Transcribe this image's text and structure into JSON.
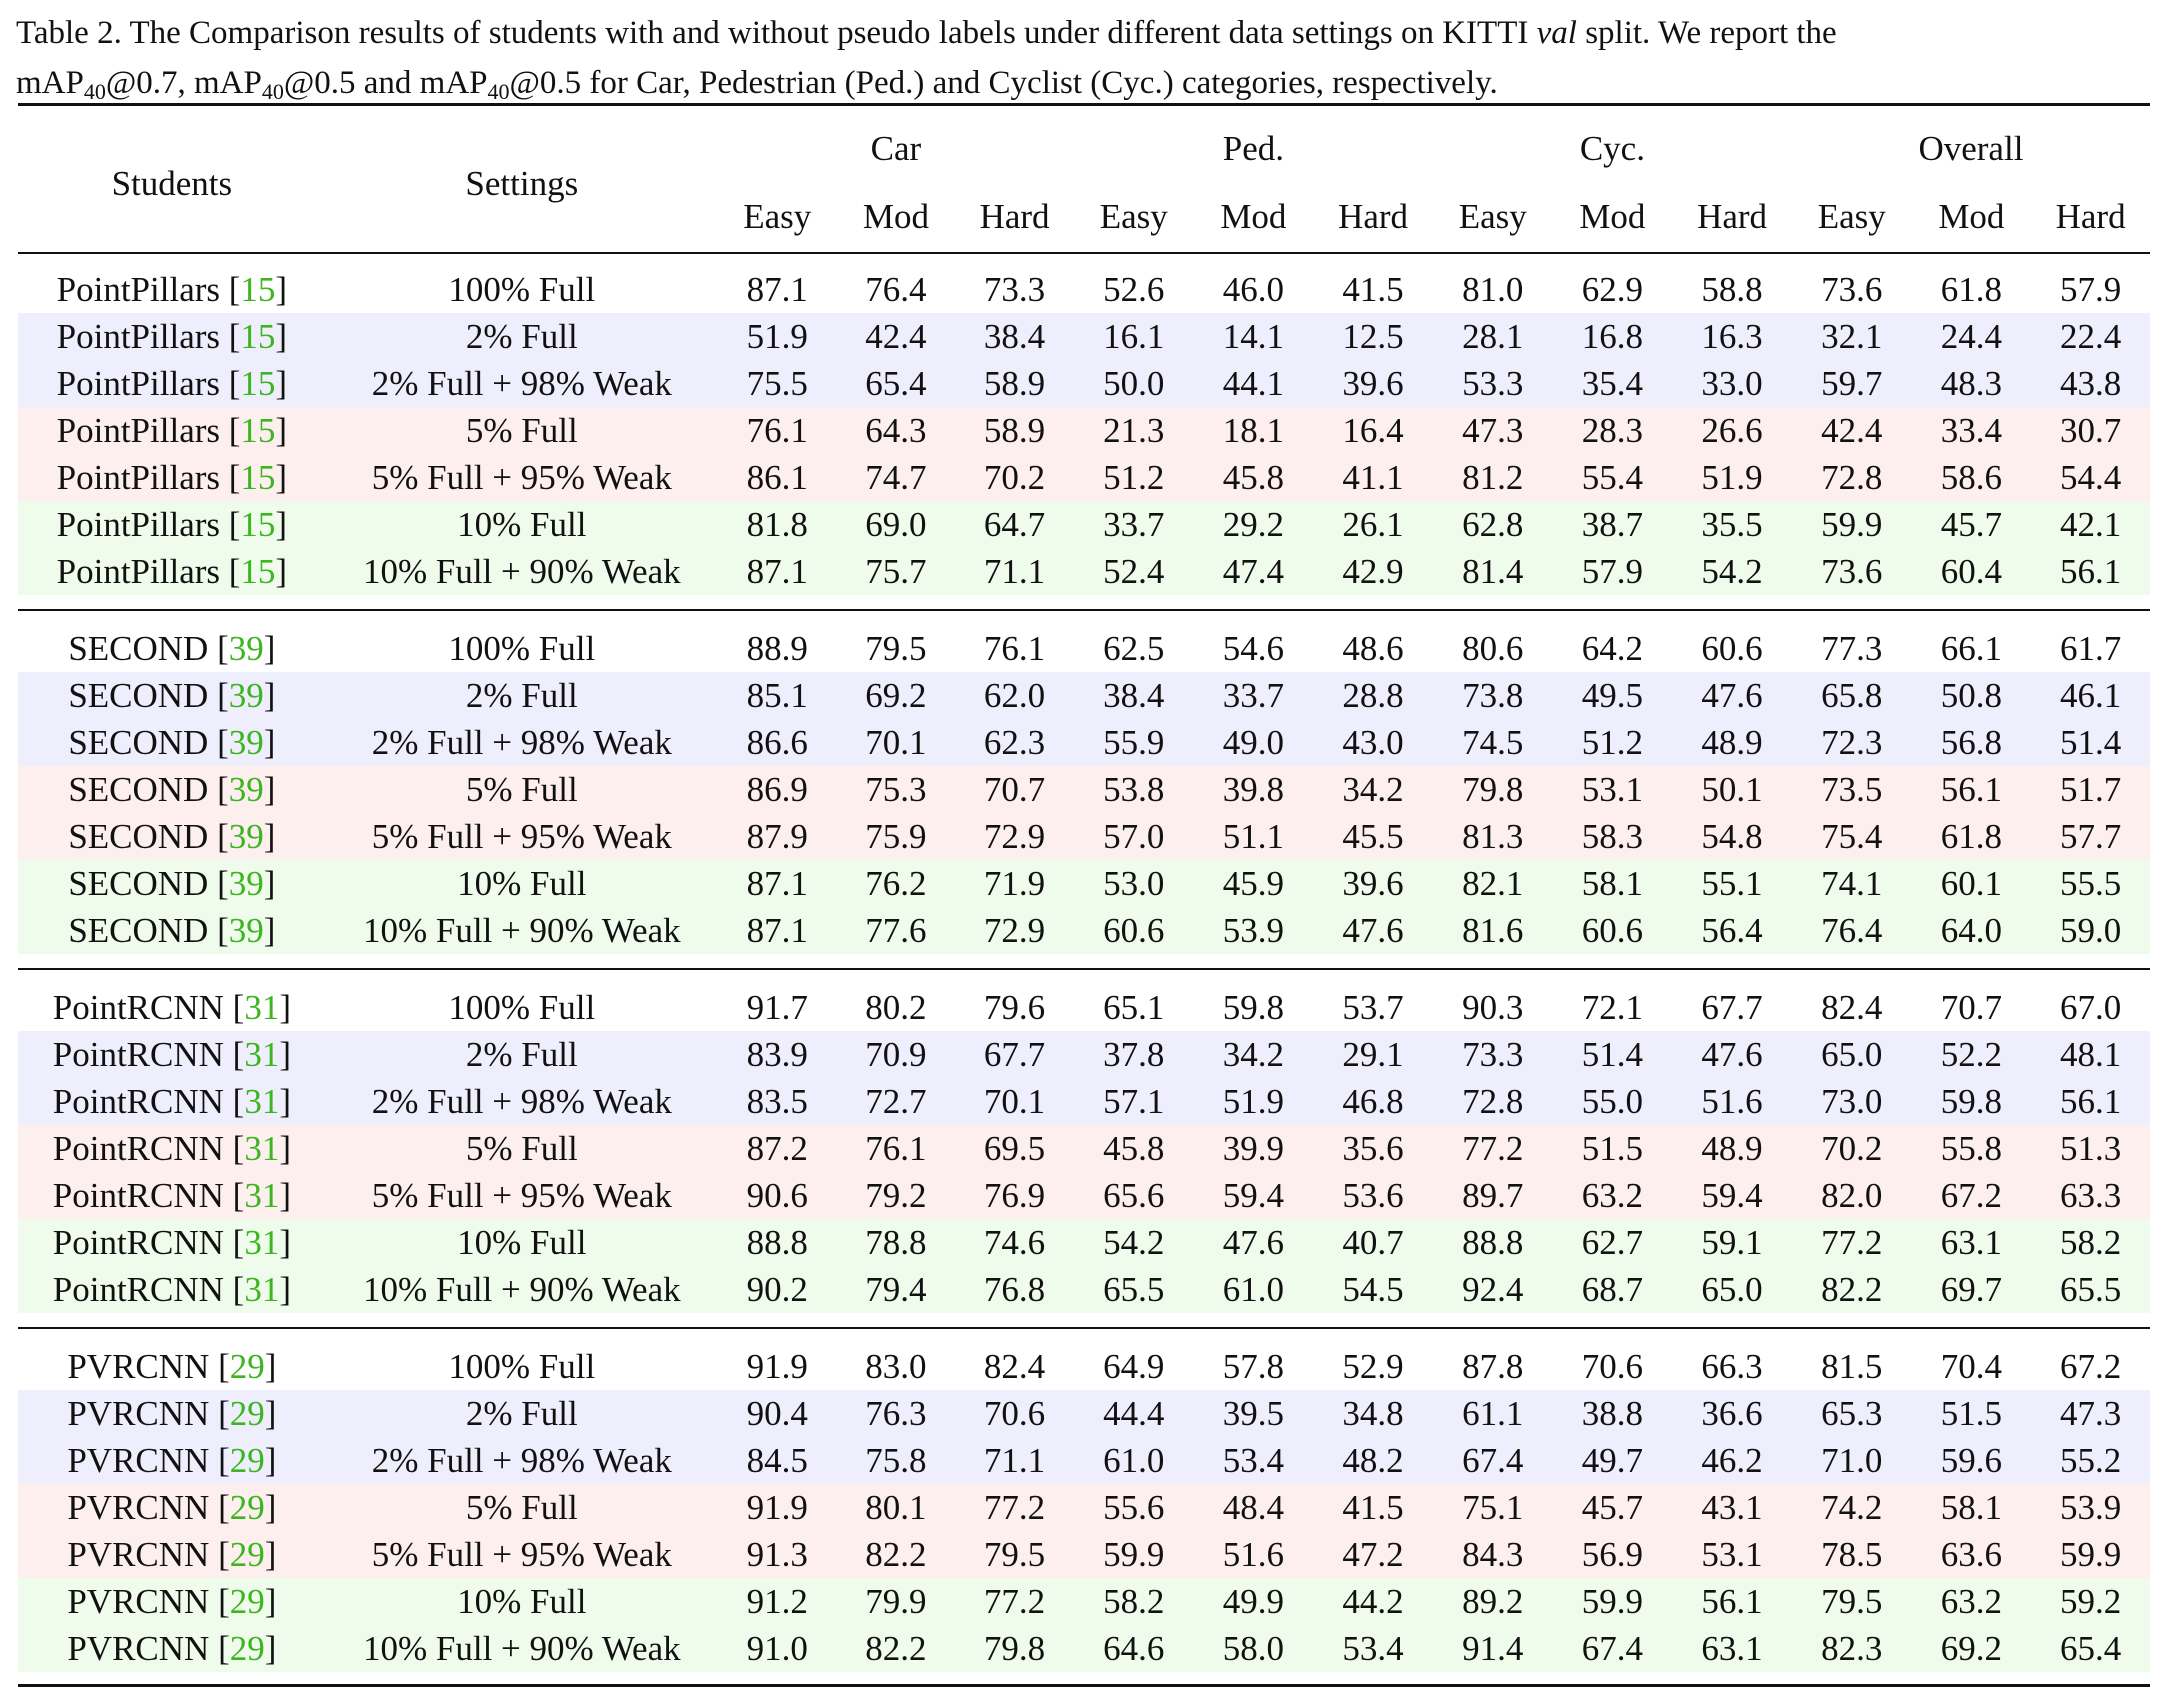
{
  "caption": {
    "part1": "Table 2. The Comparison results of students with and without pseudo labels under different data settings on KITTI ",
    "val": "val",
    "part2": " split. We report the",
    "map": "mAP",
    "sub": "40",
    "m1": "@0.7, ",
    "m2": "@0.5 and ",
    "m3": "@0.5 for Car, Pedestrian (Ped.) and Cyclist (Cyc.) categories, respectively."
  },
  "headers": {
    "students": "Students",
    "settings": "Settings",
    "groups": [
      "Car",
      "Ped.",
      "Cyc.",
      "Overall"
    ],
    "sub": [
      "Easy",
      "Mod",
      "Hard",
      "Easy",
      "Mod",
      "Hard",
      "Easy",
      "Mod",
      "Hard",
      "Easy",
      "Mod",
      "Hard"
    ]
  },
  "colors": {
    "ref_link": "#3cb521",
    "row_blue": "#eeeefc",
    "row_red": "#fcefee",
    "row_green": "#effcec"
  },
  "groups": [
    {
      "student": "PointPillars",
      "ref": "15",
      "rows": [
        {
          "setting": "100% Full",
          "values": [
            "87.1",
            "76.4",
            "73.3",
            "52.6",
            "46.0",
            "41.5",
            "81.0",
            "62.9",
            "58.8",
            "73.6",
            "61.8",
            "57.9"
          ]
        },
        {
          "setting": "2% Full",
          "values": [
            "51.9",
            "42.4",
            "38.4",
            "16.1",
            "14.1",
            "12.5",
            "28.1",
            "16.8",
            "16.3",
            "32.1",
            "24.4",
            "22.4"
          ]
        },
        {
          "setting": "2% Full + 98% Weak",
          "values": [
            "75.5",
            "65.4",
            "58.9",
            "50.0",
            "44.1",
            "39.6",
            "53.3",
            "35.4",
            "33.0",
            "59.7",
            "48.3",
            "43.8"
          ]
        },
        {
          "setting": "5% Full",
          "values": [
            "76.1",
            "64.3",
            "58.9",
            "21.3",
            "18.1",
            "16.4",
            "47.3",
            "28.3",
            "26.6",
            "42.4",
            "33.4",
            "30.7"
          ]
        },
        {
          "setting": "5% Full + 95% Weak",
          "values": [
            "86.1",
            "74.7",
            "70.2",
            "51.2",
            "45.8",
            "41.1",
            "81.2",
            "55.4",
            "51.9",
            "72.8",
            "58.6",
            "54.4"
          ]
        },
        {
          "setting": "10% Full",
          "values": [
            "81.8",
            "69.0",
            "64.7",
            "33.7",
            "29.2",
            "26.1",
            "62.8",
            "38.7",
            "35.5",
            "59.9",
            "45.7",
            "42.1"
          ]
        },
        {
          "setting": "10% Full + 90% Weak",
          "values": [
            "87.1",
            "75.7",
            "71.1",
            "52.4",
            "47.4",
            "42.9",
            "81.4",
            "57.9",
            "54.2",
            "73.6",
            "60.4",
            "56.1"
          ]
        }
      ]
    },
    {
      "student": "SECOND",
      "ref": "39",
      "rows": [
        {
          "setting": "100% Full",
          "values": [
            "88.9",
            "79.5",
            "76.1",
            "62.5",
            "54.6",
            "48.6",
            "80.6",
            "64.2",
            "60.6",
            "77.3",
            "66.1",
            "61.7"
          ]
        },
        {
          "setting": "2% Full",
          "values": [
            "85.1",
            "69.2",
            "62.0",
            "38.4",
            "33.7",
            "28.8",
            "73.8",
            "49.5",
            "47.6",
            "65.8",
            "50.8",
            "46.1"
          ]
        },
        {
          "setting": "2% Full + 98% Weak",
          "values": [
            "86.6",
            "70.1",
            "62.3",
            "55.9",
            "49.0",
            "43.0",
            "74.5",
            "51.2",
            "48.9",
            "72.3",
            "56.8",
            "51.4"
          ]
        },
        {
          "setting": "5% Full",
          "values": [
            "86.9",
            "75.3",
            "70.7",
            "53.8",
            "39.8",
            "34.2",
            "79.8",
            "53.1",
            "50.1",
            "73.5",
            "56.1",
            "51.7"
          ]
        },
        {
          "setting": "5% Full + 95% Weak",
          "values": [
            "87.9",
            "75.9",
            "72.9",
            "57.0",
            "51.1",
            "45.5",
            "81.3",
            "58.3",
            "54.8",
            "75.4",
            "61.8",
            "57.7"
          ]
        },
        {
          "setting": "10% Full",
          "values": [
            "87.1",
            "76.2",
            "71.9",
            "53.0",
            "45.9",
            "39.6",
            "82.1",
            "58.1",
            "55.1",
            "74.1",
            "60.1",
            "55.5"
          ]
        },
        {
          "setting": "10% Full + 90% Weak",
          "values": [
            "87.1",
            "77.6",
            "72.9",
            "60.6",
            "53.9",
            "47.6",
            "81.6",
            "60.6",
            "56.4",
            "76.4",
            "64.0",
            "59.0"
          ]
        }
      ]
    },
    {
      "student": "PointRCNN",
      "ref": "31",
      "rows": [
        {
          "setting": "100% Full",
          "values": [
            "91.7",
            "80.2",
            "79.6",
            "65.1",
            "59.8",
            "53.7",
            "90.3",
            "72.1",
            "67.7",
            "82.4",
            "70.7",
            "67.0"
          ]
        },
        {
          "setting": "2% Full",
          "values": [
            "83.9",
            "70.9",
            "67.7",
            "37.8",
            "34.2",
            "29.1",
            "73.3",
            "51.4",
            "47.6",
            "65.0",
            "52.2",
            "48.1"
          ]
        },
        {
          "setting": "2% Full + 98% Weak",
          "values": [
            "83.5",
            "72.7",
            "70.1",
            "57.1",
            "51.9",
            "46.8",
            "72.8",
            "55.0",
            "51.6",
            "73.0",
            "59.8",
            "56.1"
          ]
        },
        {
          "setting": "5% Full",
          "values": [
            "87.2",
            "76.1",
            "69.5",
            "45.8",
            "39.9",
            "35.6",
            "77.2",
            "51.5",
            "48.9",
            "70.2",
            "55.8",
            "51.3"
          ]
        },
        {
          "setting": "5% Full + 95% Weak",
          "values": [
            "90.6",
            "79.2",
            "76.9",
            "65.6",
            "59.4",
            "53.6",
            "89.7",
            "63.2",
            "59.4",
            "82.0",
            "67.2",
            "63.3"
          ]
        },
        {
          "setting": "10% Full",
          "values": [
            "88.8",
            "78.8",
            "74.6",
            "54.2",
            "47.6",
            "40.7",
            "88.8",
            "62.7",
            "59.1",
            "77.2",
            "63.1",
            "58.2"
          ]
        },
        {
          "setting": "10% Full + 90% Weak",
          "values": [
            "90.2",
            "79.4",
            "76.8",
            "65.5",
            "61.0",
            "54.5",
            "92.4",
            "68.7",
            "65.0",
            "82.2",
            "69.7",
            "65.5"
          ]
        }
      ]
    },
    {
      "student": "PVRCNN",
      "ref": "29",
      "rows": [
        {
          "setting": "100% Full",
          "values": [
            "91.9",
            "83.0",
            "82.4",
            "64.9",
            "57.8",
            "52.9",
            "87.8",
            "70.6",
            "66.3",
            "81.5",
            "70.4",
            "67.2"
          ]
        },
        {
          "setting": "2% Full",
          "values": [
            "90.4",
            "76.3",
            "70.6",
            "44.4",
            "39.5",
            "34.8",
            "61.1",
            "38.8",
            "36.6",
            "65.3",
            "51.5",
            "47.3"
          ]
        },
        {
          "setting": "2% Full + 98% Weak",
          "values": [
            "84.5",
            "75.8",
            "71.1",
            "61.0",
            "53.4",
            "48.2",
            "67.4",
            "49.7",
            "46.2",
            "71.0",
            "59.6",
            "55.2"
          ]
        },
        {
          "setting": "5% Full",
          "values": [
            "91.9",
            "80.1",
            "77.2",
            "55.6",
            "48.4",
            "41.5",
            "75.1",
            "45.7",
            "43.1",
            "74.2",
            "58.1",
            "53.9"
          ]
        },
        {
          "setting": "5% Full + 95% Weak",
          "values": [
            "91.3",
            "82.2",
            "79.5",
            "59.9",
            "51.6",
            "47.2",
            "84.3",
            "56.9",
            "53.1",
            "78.5",
            "63.6",
            "59.9"
          ]
        },
        {
          "setting": "10% Full",
          "values": [
            "91.2",
            "79.9",
            "77.2",
            "58.2",
            "49.9",
            "44.2",
            "89.2",
            "59.9",
            "56.1",
            "79.5",
            "63.2",
            "59.2"
          ]
        },
        {
          "setting": "10% Full + 90% Weak",
          "values": [
            "91.0",
            "82.2",
            "79.8",
            "64.6",
            "58.0",
            "53.4",
            "91.4",
            "67.4",
            "63.1",
            "82.3",
            "69.2",
            "65.4"
          ]
        }
      ]
    }
  ]
}
